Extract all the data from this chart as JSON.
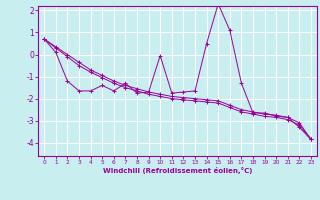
{
  "background_color": "#c8eef0",
  "line_color": "#990099",
  "grid_color": "#ffffff",
  "xlabel": "Windchill (Refroidissement éolien,°C)",
  "xlim": [
    -0.5,
    23.5
  ],
  "ylim": [
    -4.6,
    2.2
  ],
  "xticks": [
    0,
    1,
    2,
    3,
    4,
    5,
    6,
    7,
    8,
    9,
    10,
    11,
    12,
    13,
    14,
    15,
    16,
    17,
    18,
    19,
    20,
    21,
    22,
    23
  ],
  "yticks": [
    -4,
    -3,
    -2,
    -1,
    0,
    1,
    2
  ],
  "series1_x": [
    0,
    1,
    2,
    3,
    4,
    5,
    6,
    7,
    8,
    9,
    10,
    11,
    12,
    13,
    14,
    15,
    16,
    17,
    18,
    19,
    20,
    21,
    22,
    23
  ],
  "series1_y": [
    0.7,
    0.1,
    -1.2,
    -1.65,
    -1.65,
    -1.4,
    -1.65,
    -1.3,
    -1.75,
    -1.7,
    -0.05,
    -1.75,
    -1.7,
    -1.65,
    0.5,
    2.3,
    1.1,
    -1.3,
    -2.65,
    -2.65,
    -2.8,
    -2.85,
    -3.3,
    -3.85
  ],
  "series2_x": [
    0,
    1,
    2,
    3,
    4,
    5,
    6,
    7,
    8,
    9,
    10,
    11,
    12,
    13,
    14,
    15,
    16,
    17,
    18,
    19,
    20,
    21,
    22,
    23
  ],
  "series2_y": [
    0.7,
    0.35,
    0.0,
    -0.35,
    -0.7,
    -0.95,
    -1.2,
    -1.4,
    -1.55,
    -1.7,
    -1.8,
    -1.9,
    -1.95,
    -2.0,
    -2.05,
    -2.1,
    -2.3,
    -2.5,
    -2.6,
    -2.7,
    -2.75,
    -2.85,
    -3.1,
    -3.85
  ],
  "series3_x": [
    0,
    1,
    2,
    3,
    4,
    5,
    6,
    7,
    8,
    9,
    10,
    11,
    12,
    13,
    14,
    15,
    16,
    17,
    18,
    19,
    20,
    21,
    22,
    23
  ],
  "series3_y": [
    0.7,
    0.3,
    -0.1,
    -0.5,
    -0.8,
    -1.05,
    -1.3,
    -1.5,
    -1.65,
    -1.8,
    -1.9,
    -2.0,
    -2.05,
    -2.1,
    -2.15,
    -2.2,
    -2.4,
    -2.6,
    -2.7,
    -2.8,
    -2.85,
    -2.95,
    -3.2,
    -3.85
  ]
}
